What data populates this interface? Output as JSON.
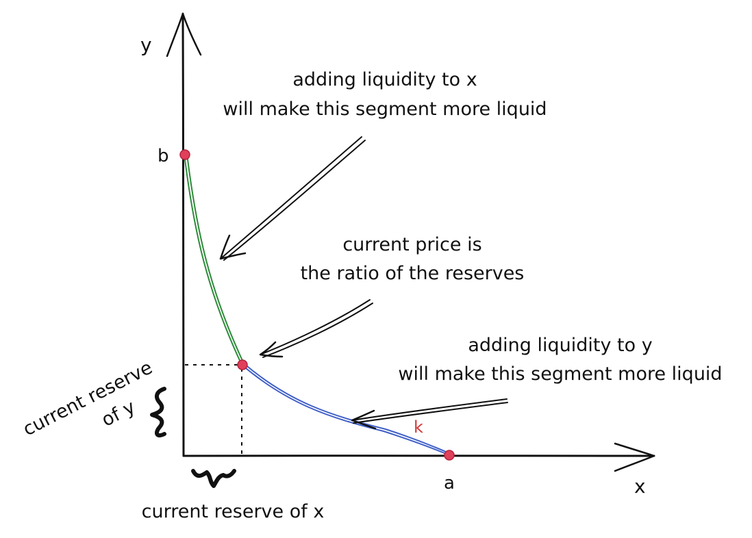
{
  "axes": {
    "y_label": "y",
    "x_label": "x",
    "b_label": "b",
    "a_label": "a"
  },
  "annotations": {
    "liquidity_x_line1": "adding liquidity to x",
    "liquidity_x_line2": "will make this segment more liquid",
    "price_line1": "current price is",
    "price_line2": "the ratio of the reserves",
    "liquidity_y_line1": "adding liquidity to y",
    "liquidity_y_line2": "will make this segment more liquid",
    "k_label": "k",
    "reserve_y_line1": "current reserve",
    "reserve_y_line2": "of y",
    "reserve_x": "current reserve of x"
  },
  "colors": {
    "ink": "#111111",
    "green_segment": "#2e8b3a",
    "blue_segment": "#3f5fc7",
    "point": "#e0405a",
    "k_label": "#d23a3a"
  }
}
